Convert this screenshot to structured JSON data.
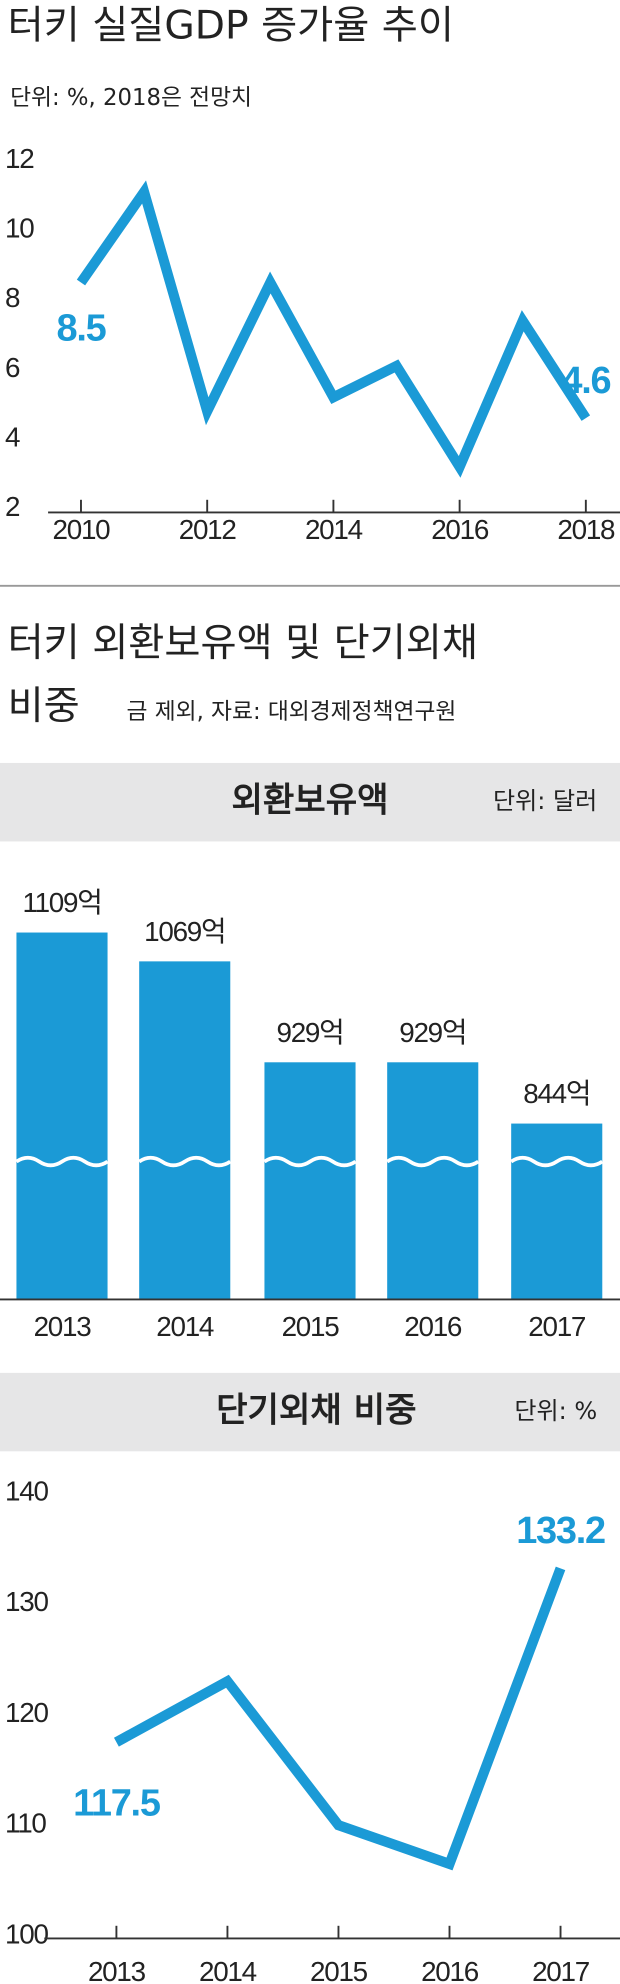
{
  "chart_data": [
    {
      "type": "line",
      "title": "터키 실질GDP 증가율 추이",
      "subtitle": "단위: %, 2018은 전망치",
      "x": [
        2010,
        2011,
        2012,
        2013,
        2014,
        2015,
        2016,
        2017,
        2018
      ],
      "values": [
        8.5,
        11.1,
        4.8,
        8.5,
        5.2,
        6.1,
        3.2,
        7.4,
        4.6
      ],
      "labeled_points": [
        0,
        8
      ],
      "color": "#1b9ad6",
      "xlim": [
        2010,
        2018
      ],
      "xticks": [
        2010,
        2012,
        2014,
        2016,
        2018
      ],
      "ylim": [
        2,
        12
      ],
      "yticks": [
        2,
        4,
        6,
        8,
        10,
        12
      ]
    },
    {
      "type": "bar",
      "title": "터키 외환보유액 및 단기외채",
      "title_line2": "비중",
      "subtitle": "금 제외, 자료: 대외경제정책연구원",
      "panel_title": "외환보유액",
      "unit": "단위: 달러",
      "categories": [
        "2013",
        "2014",
        "2015",
        "2016",
        "2017"
      ],
      "values": [
        1109,
        1069,
        929,
        929,
        844
      ],
      "value_labels": [
        "1109억",
        "1069억",
        "929억",
        "929억",
        "844억"
      ],
      "color": "#1b9ad6",
      "ylim": [
        600,
        1109
      ],
      "axis_break": true
    },
    {
      "type": "line",
      "panel_title": "단기외채 비중",
      "unit": "단위: %",
      "x": [
        2013,
        2014,
        2015,
        2016,
        2017
      ],
      "values": [
        117.5,
        123,
        110,
        106.5,
        133.2
      ],
      "labeled_points": [
        0,
        4
      ],
      "color": "#1b9ad6",
      "xlim": [
        2013,
        2017
      ],
      "xticks": [
        2013,
        2014,
        2015,
        2016,
        2017
      ],
      "ylim": [
        100,
        140
      ],
      "yticks": [
        100,
        110,
        120,
        130,
        140
      ]
    }
  ]
}
